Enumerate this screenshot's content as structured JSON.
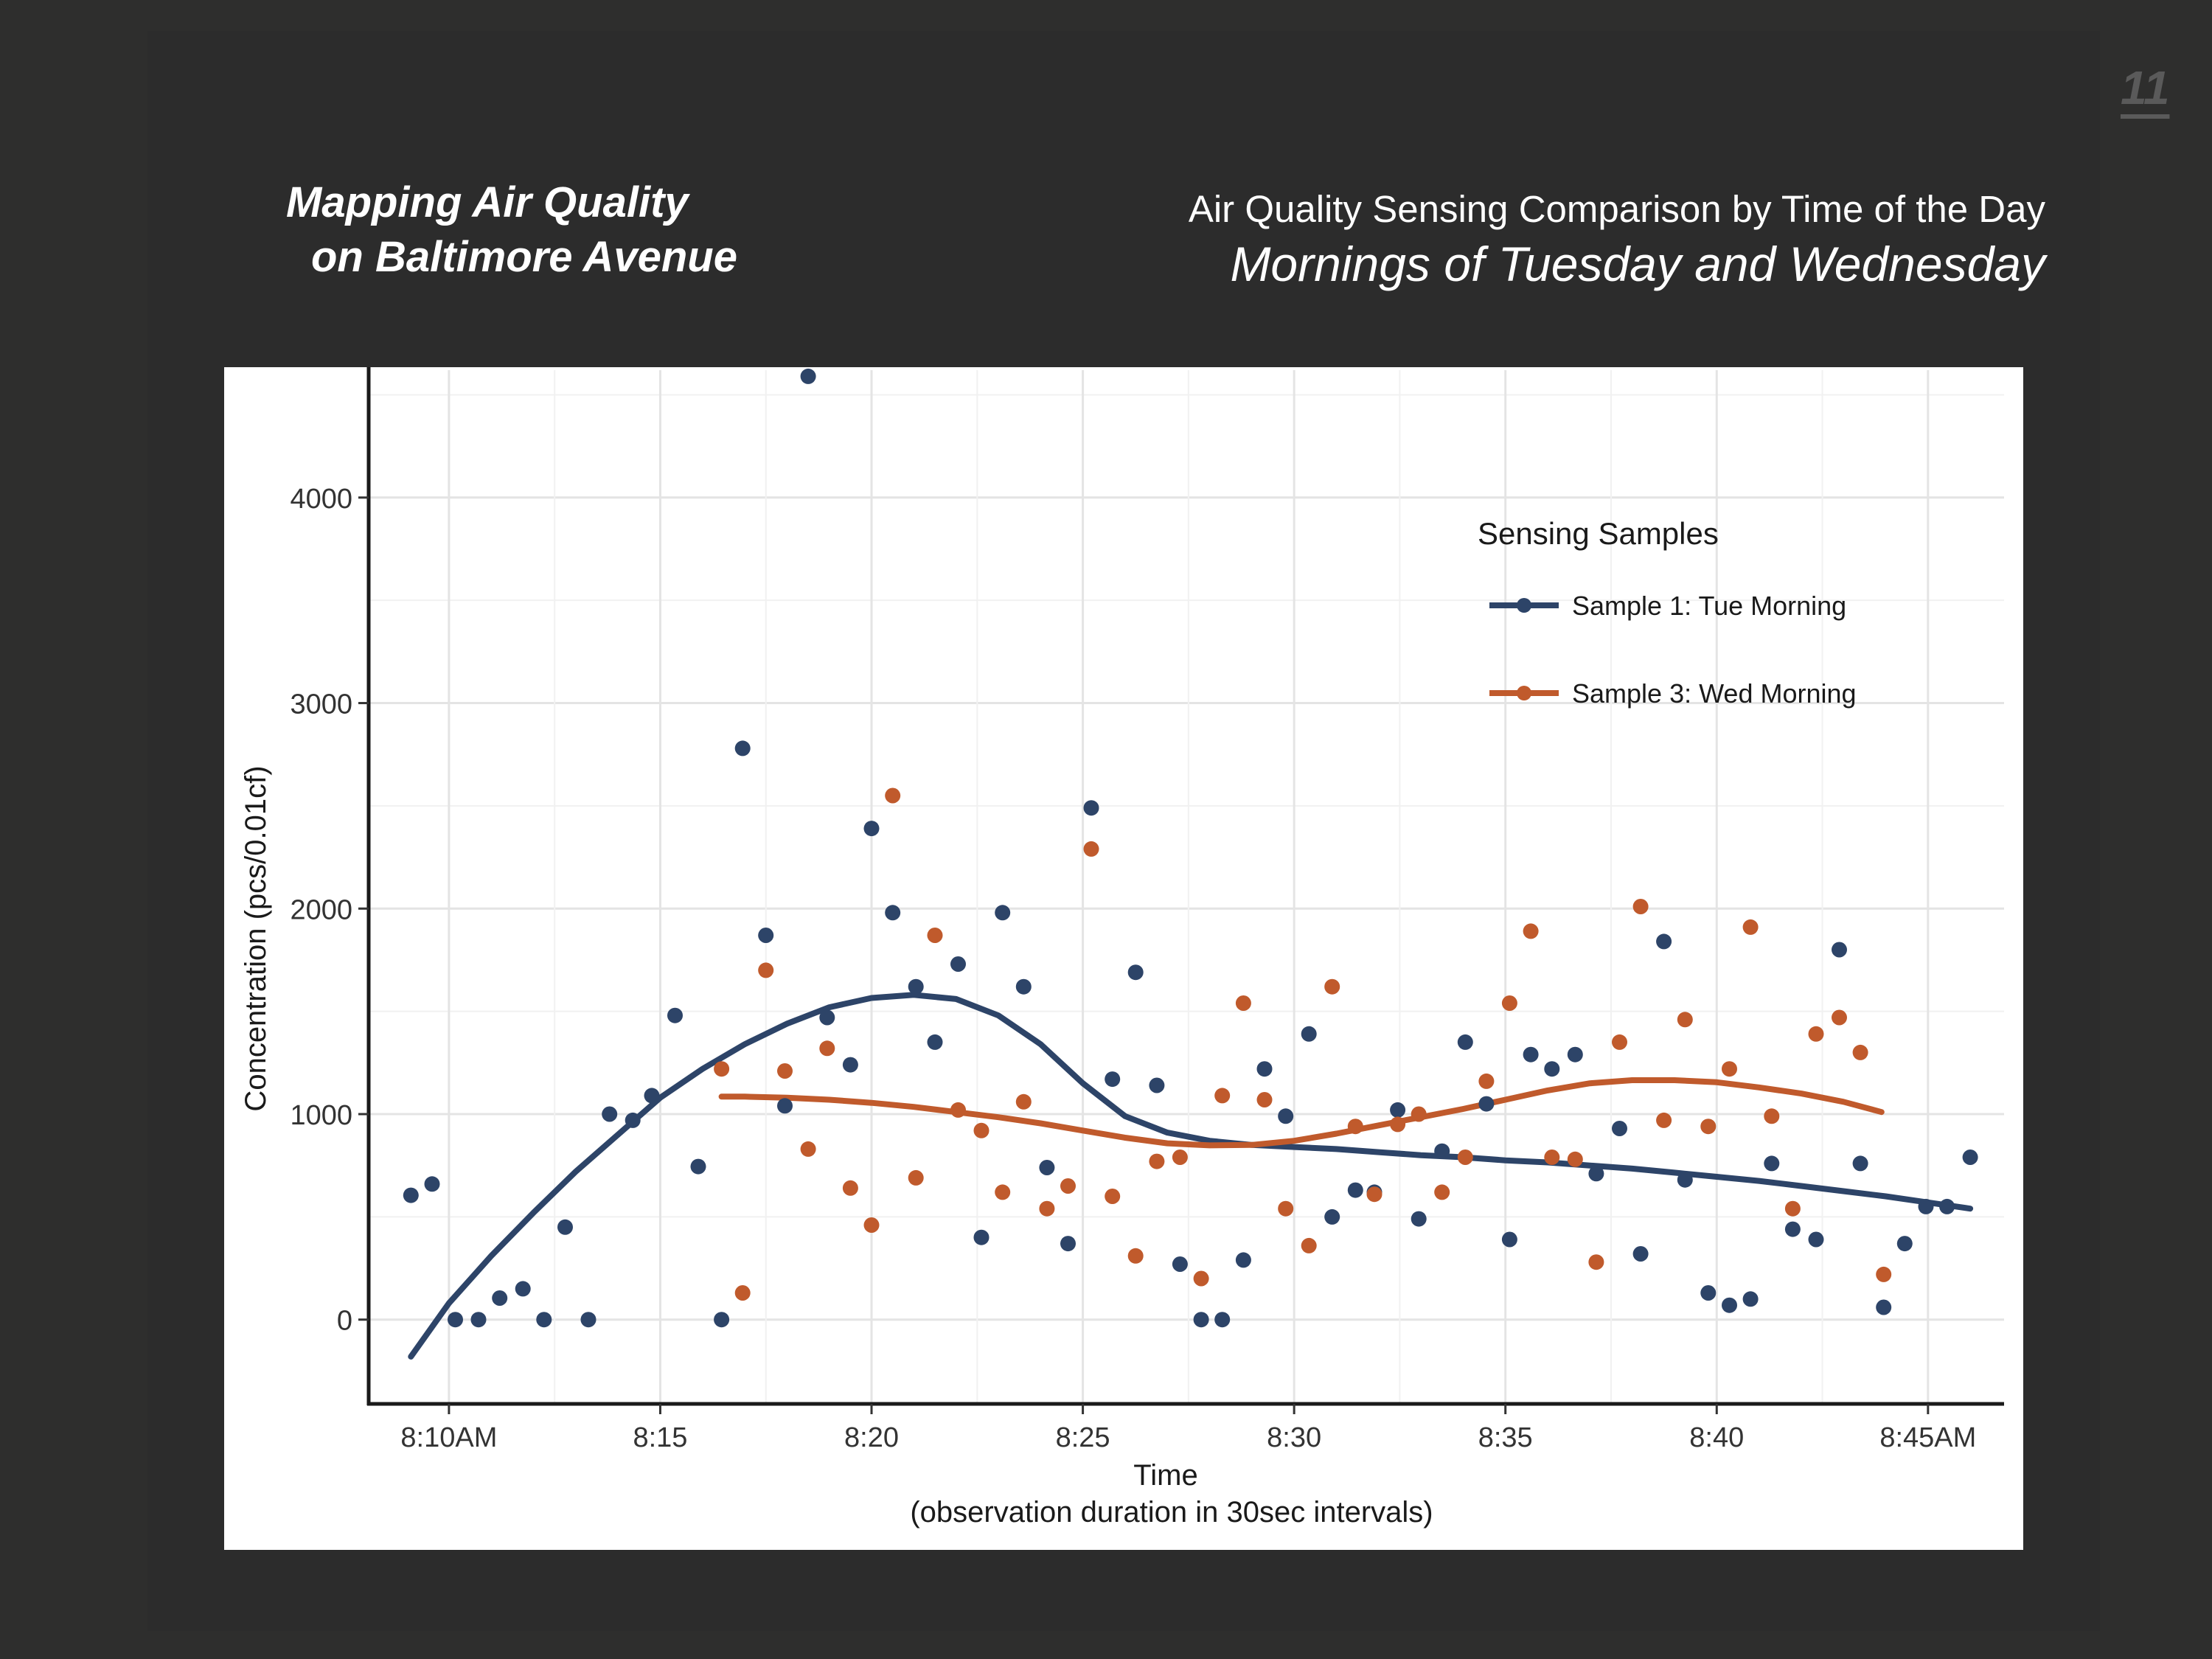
{
  "slide": {
    "page_number": "11",
    "title_line1": "Mapping Air Quality",
    "title_line2": "on Baltimore Avenue",
    "subtitle_line1": "Air Quality Sensing Comparison by Time of the Day",
    "subtitle_line2": "Mornings of Tuesday and Wednesday"
  },
  "chart_data": {
    "type": "scatter",
    "xlabel": "Time",
    "xlabel_sub": "(observation duration in 30sec intervals)",
    "ylabel": "Concentration (pcs/0.01cf)",
    "x_unit": "clock time (minutes after 8:00 AM)",
    "xlim": [
      8.1,
      46.8
    ],
    "ylim": [
      -410,
      4620
    ],
    "x_ticks": [
      {
        "value": 10,
        "label": "8:10AM"
      },
      {
        "value": 15,
        "label": "8:15"
      },
      {
        "value": 20,
        "label": "8:20"
      },
      {
        "value": 25,
        "label": "8:25"
      },
      {
        "value": 30,
        "label": "8:30"
      },
      {
        "value": 35,
        "label": "8:35"
      },
      {
        "value": 40,
        "label": "8:40"
      },
      {
        "value": 45,
        "label": "8:45AM"
      }
    ],
    "y_ticks": [
      0,
      1000,
      2000,
      3000,
      4000
    ],
    "grid": true,
    "legend": {
      "title": "Sensing Samples",
      "position": "top-right"
    },
    "series": [
      {
        "name": "Sample 1: Tue Morning",
        "color": "#2d4468",
        "points": [
          [
            9.1,
            605
          ],
          [
            9.6,
            660
          ],
          [
            10.15,
            0
          ],
          [
            10.7,
            0
          ],
          [
            11.2,
            105
          ],
          [
            11.75,
            150
          ],
          [
            12.25,
            0
          ],
          [
            12.75,
            450
          ],
          [
            13.3,
            0
          ],
          [
            13.8,
            1000
          ],
          [
            14.35,
            970
          ],
          [
            14.8,
            1090
          ],
          [
            15.35,
            1480
          ],
          [
            15.9,
            745
          ],
          [
            16.45,
            0
          ],
          [
            16.95,
            2780
          ],
          [
            17.5,
            1870
          ],
          [
            17.95,
            1040
          ],
          [
            18.5,
            4590
          ],
          [
            18.95,
            1470
          ],
          [
            19.5,
            1240
          ],
          [
            20.0,
            2390
          ],
          [
            20.5,
            1980
          ],
          [
            21.05,
            1620
          ],
          [
            21.5,
            1350
          ],
          [
            22.05,
            1730
          ],
          [
            22.6,
            400
          ],
          [
            23.1,
            1980
          ],
          [
            23.6,
            1620
          ],
          [
            24.15,
            740
          ],
          [
            24.65,
            370
          ],
          [
            25.2,
            2490
          ],
          [
            25.7,
            1170
          ],
          [
            26.25,
            1690
          ],
          [
            26.75,
            1140
          ],
          [
            27.3,
            270
          ],
          [
            27.8,
            0
          ],
          [
            28.3,
            0
          ],
          [
            28.8,
            290
          ],
          [
            29.3,
            1220
          ],
          [
            29.8,
            990
          ],
          [
            30.35,
            1390
          ],
          [
            30.9,
            500
          ],
          [
            31.45,
            630
          ],
          [
            31.9,
            620
          ],
          [
            32.45,
            1020
          ],
          [
            32.95,
            490
          ],
          [
            33.5,
            820
          ],
          [
            34.05,
            1350
          ],
          [
            34.55,
            1050
          ],
          [
            35.1,
            390
          ],
          [
            35.6,
            1290
          ],
          [
            36.1,
            1220
          ],
          [
            36.65,
            1290
          ],
          [
            37.15,
            710
          ],
          [
            37.7,
            930
          ],
          [
            38.2,
            320
          ],
          [
            38.75,
            1840
          ],
          [
            39.25,
            680
          ],
          [
            39.8,
            130
          ],
          [
            40.3,
            70
          ],
          [
            40.8,
            100
          ],
          [
            41.3,
            760
          ],
          [
            41.8,
            440
          ],
          [
            42.35,
            390
          ],
          [
            42.9,
            1800
          ],
          [
            43.4,
            760
          ],
          [
            43.95,
            60
          ],
          [
            44.45,
            370
          ],
          [
            44.95,
            550
          ],
          [
            45.45,
            550
          ],
          [
            46.0,
            790
          ]
        ],
        "trend": [
          [
            9.1,
            -180
          ],
          [
            10.0,
            80
          ],
          [
            11.0,
            310
          ],
          [
            12.0,
            520
          ],
          [
            13.0,
            720
          ],
          [
            14.0,
            900
          ],
          [
            15.0,
            1080
          ],
          [
            16.0,
            1220
          ],
          [
            17.0,
            1340
          ],
          [
            18.0,
            1440
          ],
          [
            19.0,
            1520
          ],
          [
            20.0,
            1565
          ],
          [
            21.0,
            1580
          ],
          [
            22.0,
            1560
          ],
          [
            23.0,
            1480
          ],
          [
            24.0,
            1340
          ],
          [
            25.0,
            1150
          ],
          [
            26.0,
            990
          ],
          [
            27.0,
            910
          ],
          [
            28.0,
            870
          ],
          [
            29.0,
            850
          ],
          [
            30.0,
            840
          ],
          [
            31.0,
            830
          ],
          [
            32.0,
            815
          ],
          [
            33.0,
            800
          ],
          [
            34.0,
            790
          ],
          [
            35.0,
            775
          ],
          [
            36.0,
            765
          ],
          [
            37.0,
            750
          ],
          [
            38.0,
            735
          ],
          [
            39.0,
            715
          ],
          [
            40.0,
            695
          ],
          [
            41.0,
            675
          ],
          [
            42.0,
            650
          ],
          [
            43.0,
            625
          ],
          [
            44.0,
            600
          ],
          [
            45.0,
            570
          ],
          [
            46.0,
            540
          ]
        ]
      },
      {
        "name": "Sample 3: Wed Morning",
        "color": "#c05a2c",
        "points": [
          [
            16.45,
            1220
          ],
          [
            16.95,
            130
          ],
          [
            17.5,
            1700
          ],
          [
            17.95,
            1210
          ],
          [
            18.5,
            830
          ],
          [
            18.95,
            1320
          ],
          [
            19.5,
            640
          ],
          [
            20.0,
            460
          ],
          [
            20.5,
            2550
          ],
          [
            21.05,
            690
          ],
          [
            21.5,
            1870
          ],
          [
            22.05,
            1020
          ],
          [
            22.6,
            920
          ],
          [
            23.1,
            620
          ],
          [
            23.6,
            1060
          ],
          [
            24.15,
            540
          ],
          [
            24.65,
            650
          ],
          [
            25.2,
            2290
          ],
          [
            25.7,
            600
          ],
          [
            26.25,
            310
          ],
          [
            26.75,
            770
          ],
          [
            27.3,
            790
          ],
          [
            27.8,
            200
          ],
          [
            28.3,
            1090
          ],
          [
            28.8,
            1540
          ],
          [
            29.3,
            1070
          ],
          [
            29.8,
            540
          ],
          [
            30.35,
            360
          ],
          [
            30.9,
            1620
          ],
          [
            31.45,
            940
          ],
          [
            31.9,
            610
          ],
          [
            32.45,
            950
          ],
          [
            32.95,
            1000
          ],
          [
            33.5,
            620
          ],
          [
            34.05,
            790
          ],
          [
            34.55,
            1160
          ],
          [
            35.1,
            1540
          ],
          [
            35.6,
            1890
          ],
          [
            36.1,
            790
          ],
          [
            36.65,
            780
          ],
          [
            37.15,
            280
          ],
          [
            37.7,
            1350
          ],
          [
            38.2,
            2010
          ],
          [
            38.75,
            970
          ],
          [
            39.25,
            1460
          ],
          [
            39.8,
            940
          ],
          [
            40.3,
            1220
          ],
          [
            40.8,
            1910
          ],
          [
            41.3,
            990
          ],
          [
            41.8,
            540
          ],
          [
            42.35,
            1390
          ],
          [
            42.9,
            1470
          ],
          [
            43.4,
            1300
          ],
          [
            43.95,
            220
          ]
        ],
        "trend": [
          [
            16.45,
            1085
          ],
          [
            17.0,
            1085
          ],
          [
            18.0,
            1080
          ],
          [
            19.0,
            1070
          ],
          [
            20.0,
            1055
          ],
          [
            21.0,
            1035
          ],
          [
            22.0,
            1010
          ],
          [
            23.0,
            985
          ],
          [
            24.0,
            955
          ],
          [
            25.0,
            920
          ],
          [
            26.0,
            885
          ],
          [
            27.0,
            858
          ],
          [
            28.0,
            848
          ],
          [
            29.0,
            850
          ],
          [
            30.0,
            870
          ],
          [
            31.0,
            905
          ],
          [
            32.0,
            945
          ],
          [
            33.0,
            985
          ],
          [
            34.0,
            1025
          ],
          [
            35.0,
            1070
          ],
          [
            36.0,
            1115
          ],
          [
            37.0,
            1150
          ],
          [
            38.0,
            1165
          ],
          [
            39.0,
            1165
          ],
          [
            40.0,
            1155
          ],
          [
            41.0,
            1130
          ],
          [
            42.0,
            1100
          ],
          [
            43.0,
            1060
          ],
          [
            43.9,
            1010
          ]
        ]
      }
    ]
  }
}
